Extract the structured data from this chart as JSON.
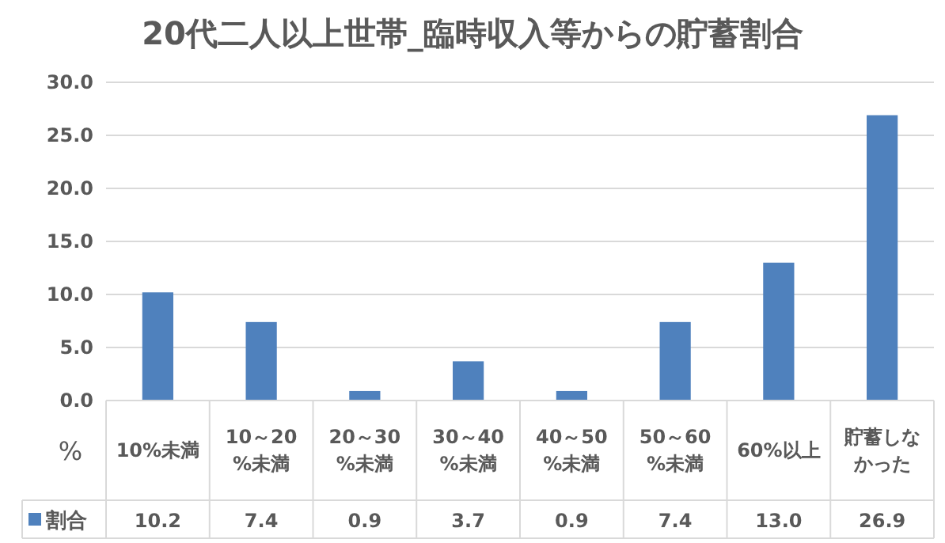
{
  "chart_data": {
    "type": "bar",
    "title": "20代二人以上世帯_臨時収入等からの貯蓄割合",
    "ylabel": "%",
    "categories": [
      "10%未満",
      "10～20%未満",
      "20～30%未満",
      "30～40%未満",
      "40～50%未満",
      "50～60%未満",
      "60%以上",
      "貯蓄しなかった"
    ],
    "series": [
      {
        "name": "割合",
        "color": "#4f81bd",
        "values": [
          10.2,
          7.4,
          0.9,
          3.7,
          0.9,
          7.4,
          13.0,
          26.9
        ],
        "value_labels": [
          "10.2",
          "7.4",
          "0.9",
          "3.7",
          "0.9",
          "7.4",
          "13.0",
          "26.9"
        ]
      }
    ],
    "ylim": [
      0,
      30
    ],
    "yticks": [
      {
        "value": 0,
        "label": "0.0"
      },
      {
        "value": 5,
        "label": "5.0"
      },
      {
        "value": 10,
        "label": "10.0"
      },
      {
        "value": 15,
        "label": "15.0"
      },
      {
        "value": 20,
        "label": "20.0"
      },
      {
        "value": 25,
        "label": "25.0"
      },
      {
        "value": 30,
        "label": "30.0"
      }
    ],
    "grid": "y",
    "legend": "bottom"
  }
}
